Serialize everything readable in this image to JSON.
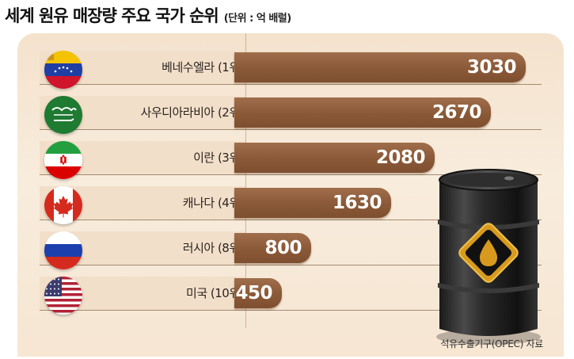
{
  "title": "세계 원유 매장량 주요 국가 순위",
  "unit": "(단위 : 억 배럴)",
  "source": "석유수출기구(OPEC) 자료",
  "colors": {
    "bar": "#8a5937",
    "panel": "#f6e6d2",
    "value_text": "#ffffff"
  },
  "chart_data": {
    "type": "bar",
    "orientation": "horizontal",
    "title": "세계 원유 매장량 주요 국가 순위",
    "unit": "(단위 : 억 배럴)",
    "categories": [
      "베네수엘라 (1위)",
      "사우디아라비아 (2위)",
      "이란 (3위)",
      "캐나다 (4위)",
      "러시아 (8위)",
      "미국 (10위)"
    ],
    "values": [
      3030,
      2670,
      2080,
      1630,
      800,
      450
    ],
    "flags": [
      "venezuela-flag-icon",
      "saudi-arabia-flag-icon",
      "iran-flag-icon",
      "canada-flag-icon",
      "russia-flag-icon",
      "usa-flag-icon"
    ],
    "value_labels": [
      "3030",
      "2670",
      "2080",
      "1630",
      "800",
      "450"
    ],
    "grid": false,
    "legend": "none",
    "source": "석유수출기구(OPEC) 자료"
  }
}
